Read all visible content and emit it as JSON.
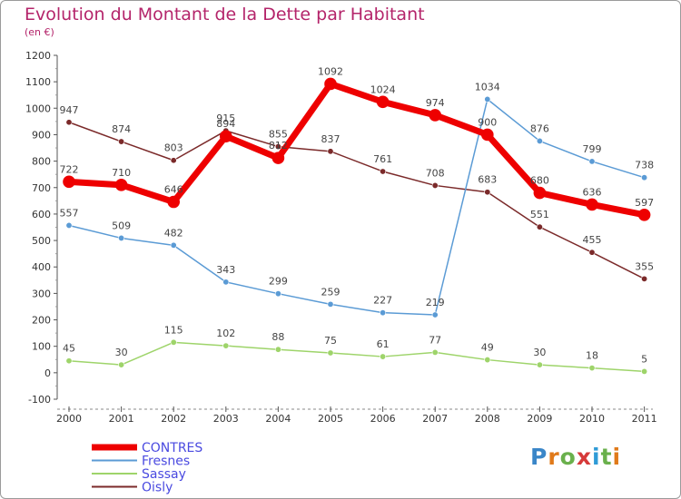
{
  "title": "Evolution du Montant de la Dette par Habitant",
  "subtitle": "(en €)",
  "logo": {
    "text": "Proxiti",
    "letter_colors": [
      "#3a86c8",
      "#e07a1a",
      "#6ab04c",
      "#d63a3a",
      "#2f9bd6",
      "#6ab04c",
      "#e07a1a"
    ]
  },
  "chart_data": {
    "type": "line",
    "x": [
      "2000",
      "2001",
      "2002",
      "2003",
      "2004",
      "2005",
      "2006",
      "2007",
      "2008",
      "2009",
      "2010",
      "2011"
    ],
    "ylim": [
      -100,
      1200
    ],
    "yticks": [
      -100,
      0,
      100,
      200,
      300,
      400,
      500,
      600,
      700,
      800,
      900,
      1000,
      1100,
      1200
    ],
    "grid": false,
    "legend_position": "bottom-left",
    "series": [
      {
        "name": "Oisly",
        "color": "#7b2a2a",
        "width": 1.5,
        "values": [
          947,
          874,
          803,
          915,
          855,
          837,
          761,
          708,
          683,
          551,
          455,
          355
        ]
      },
      {
        "name": "Fresnes",
        "color": "#5b9bd5",
        "width": 1.5,
        "values": [
          557,
          509,
          482,
          343,
          299,
          259,
          227,
          219,
          1034,
          876,
          799,
          738
        ]
      },
      {
        "name": "Sassay",
        "color": "#9ed46a",
        "width": 1.5,
        "values": [
          45,
          30,
          115,
          102,
          88,
          75,
          61,
          77,
          49,
          30,
          18,
          5
        ]
      },
      {
        "name": "CONTRES",
        "color": "#ee0000",
        "width": 7,
        "values": [
          722,
          710,
          646,
          894,
          812,
          1092,
          1024,
          974,
          900,
          680,
          636,
          597
        ]
      }
    ],
    "legend_order": [
      "CONTRES",
      "Fresnes",
      "Sassay",
      "Oisly"
    ],
    "legend_text_color": "#4a4ae0"
  }
}
